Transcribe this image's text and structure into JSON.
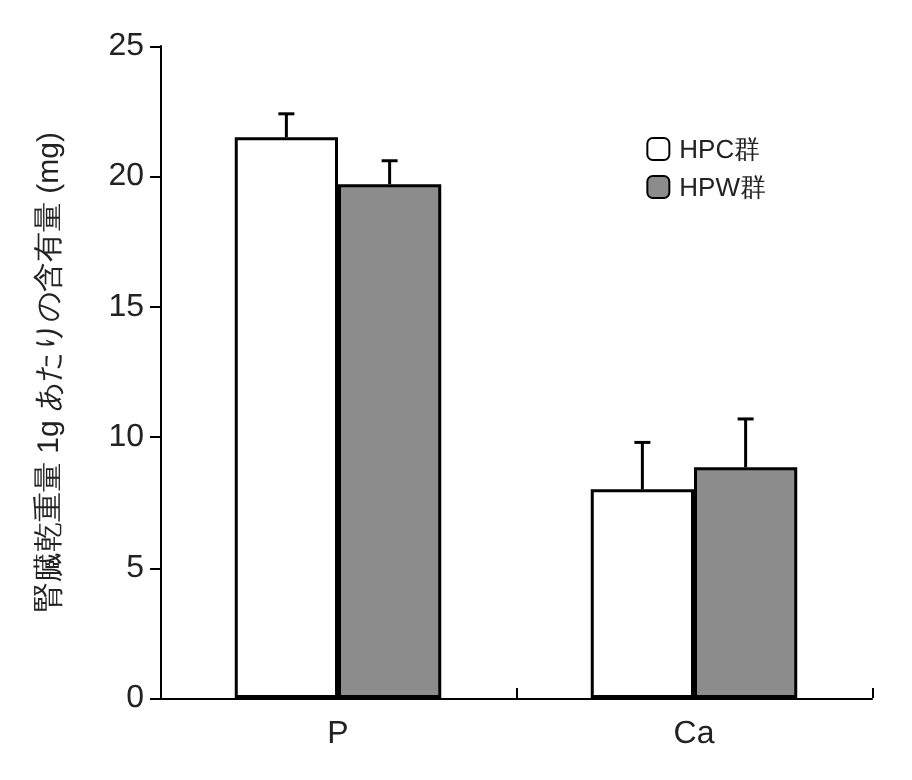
{
  "chart_data": {
    "type": "bar",
    "ylabel": "腎臓乾重量 1g あたりの含有量 (mg)",
    "categories": [
      "P",
      "Ca"
    ],
    "series": [
      {
        "name": "HPC群",
        "color": "#ffffff",
        "values": [
          21.5,
          8.0
        ],
        "errors": [
          [
            21.5,
            22.4
          ],
          [
            8.0,
            9.8
          ]
        ]
      },
      {
        "name": "HPW群",
        "color": "#8c8c8c",
        "values": [
          19.7,
          8.85
        ],
        "errors": [
          [
            19.7,
            20.6
          ],
          [
            8.85,
            10.7
          ]
        ]
      }
    ],
    "ylim": [
      0,
      25
    ],
    "yticks": [
      0,
      5,
      10,
      15,
      20,
      25
    ],
    "grid": false,
    "legend": "top right"
  }
}
